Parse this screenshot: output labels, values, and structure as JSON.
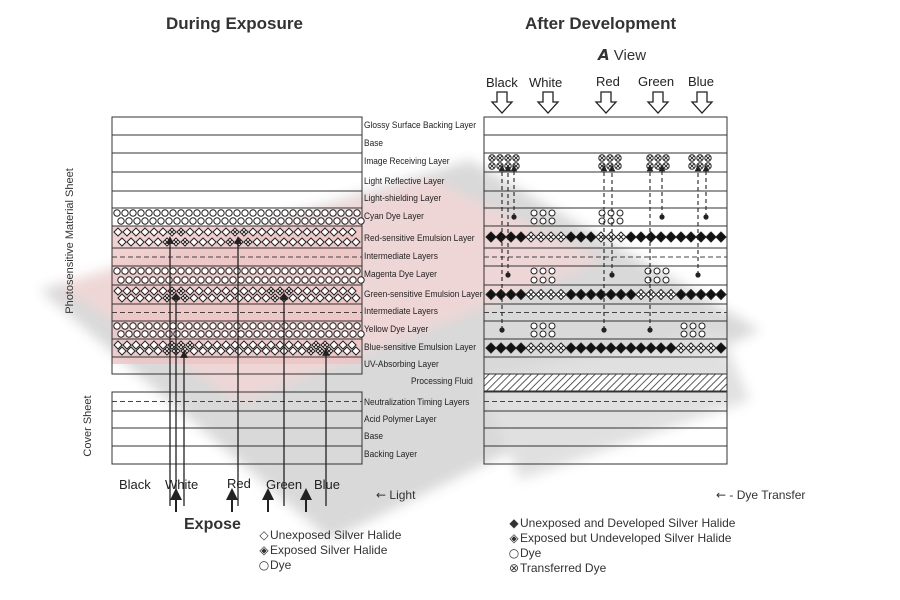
{
  "titles": {
    "left": "During Exposure",
    "right": "After Development"
  },
  "view": {
    "label": "View"
  },
  "layers": [
    "Glossy Surface Backing Layer",
    "Base",
    "Image Receiving Layer",
    "Light Reflective Layer",
    "Light-shielding Layer",
    "Cyan Dye Layer",
    "Red-sensitive Emulsion Layer",
    "Intermediate Layers",
    "Magenta Dye Layer",
    "Green-sensitive Emulsion Layer",
    "Intermediate Layers",
    "Yellow Dye Layer",
    "Blue-sensitive Emulsion Layer",
    "UV-Absorbing Layer",
    "Processing Fluid",
    "Neutralization Timing Layers",
    "Acid Polymer Layer",
    "Base",
    "Backing Layer"
  ],
  "side_labels": {
    "top": "Photosensitive Material Sheet",
    "bottom": "Cover Sheet"
  },
  "exposure_columns": [
    "Black",
    "White",
    "Red",
    "Green",
    "Blue"
  ],
  "view_columns": [
    "Black",
    "White",
    "Red",
    "Green",
    "Blue"
  ],
  "light_label": "Light",
  "expose_label": "Expose",
  "dye_transfer_label": "- Dye Transfer",
  "legend_left": [
    {
      "symbol": "◇",
      "text": "Unexposed Silver Halide"
    },
    {
      "symbol": "◈",
      "text": "Exposed Silver Halide"
    },
    {
      "symbol": "○",
      "text": "Dye"
    }
  ],
  "legend_right": [
    {
      "symbol": "◆",
      "text": "Unexposed and Developed Silver Halide"
    },
    {
      "symbol": "◈",
      "text": "Exposed but Undeveloped Silver Halide"
    },
    {
      "symbol": "○",
      "text": "Dye"
    },
    {
      "symbol": "⊗",
      "text": "Transferred Dye"
    }
  ],
  "colors": {
    "pink": "#e9b1b1",
    "line": "#333333",
    "film": "#3a3a3a"
  }
}
